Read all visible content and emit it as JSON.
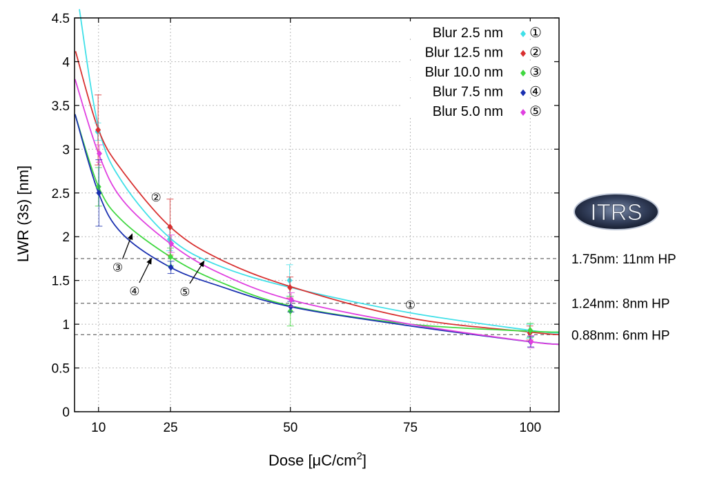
{
  "chart_data": {
    "type": "line",
    "xlabel": "Dose [μC/cm",
    "xlabel_sup": "2",
    "xlabel_end": "]",
    "ylabel": "LWR (3s)  [nm]",
    "xlim": [
      5,
      106
    ],
    "ylim": [
      0,
      4.5
    ],
    "x_ticks": [
      10,
      25,
      50,
      75,
      100
    ],
    "y_ticks": [
      0,
      0.5,
      1,
      1.5,
      2,
      2.5,
      3,
      3.5,
      4,
      4.5
    ],
    "y_tick_labels": [
      "0",
      "0.5",
      "1",
      "1.5",
      "2",
      "2.5",
      "3",
      "3.5",
      "4",
      "4.5"
    ],
    "grid": true,
    "legend_position": "top-right",
    "series": [
      {
        "name": "Blur  2.5 nm",
        "marker": "①",
        "color": "#40e0e8",
        "points": [
          [
            10,
            3.2
          ],
          [
            25,
            1.97
          ],
          [
            50,
            1.5
          ],
          [
            100,
            0.92
          ]
        ],
        "errors": [
          0.1,
          0.13,
          0.18,
          0.08
        ],
        "curve": [
          [
            6,
            4.6
          ],
          [
            10,
            3.25
          ],
          [
            15,
            2.62
          ],
          [
            25,
            1.98
          ],
          [
            35,
            1.67
          ],
          [
            50,
            1.42
          ],
          [
            75,
            1.13
          ],
          [
            100,
            0.93
          ],
          [
            106,
            0.9
          ]
        ]
      },
      {
        "name": "Blur 12.5 nm",
        "marker": "②",
        "color": "#d83030",
        "points": [
          [
            10,
            3.22
          ],
          [
            25,
            2.11
          ],
          [
            50,
            1.42
          ],
          [
            100,
            0.9
          ]
        ],
        "errors": [
          0.4,
          0.32,
          0.12,
          0.08
        ],
        "curve": [
          [
            5.2,
            4.12
          ],
          [
            10,
            3.22
          ],
          [
            15,
            2.75
          ],
          [
            25,
            2.11
          ],
          [
            35,
            1.75
          ],
          [
            50,
            1.43
          ],
          [
            75,
            1.07
          ],
          [
            100,
            0.91
          ],
          [
            106,
            0.88
          ]
        ]
      },
      {
        "name": "Blur 10.0 nm",
        "marker": "③",
        "color": "#40d840",
        "points": [
          [
            10,
            2.57
          ],
          [
            25,
            1.77
          ],
          [
            50,
            1.15
          ],
          [
            100,
            0.93
          ]
        ],
        "errors": [
          0.22,
          0.1,
          0.17,
          0.08
        ],
        "curve": [
          [
            5.1,
            3.4
          ],
          [
            10,
            2.57
          ],
          [
            15,
            2.18
          ],
          [
            25,
            1.77
          ],
          [
            35,
            1.49
          ],
          [
            50,
            1.21
          ],
          [
            75,
            1.0
          ],
          [
            100,
            0.92
          ],
          [
            106,
            0.91
          ]
        ]
      },
      {
        "name": "Blur  7.5 nm",
        "marker": "④",
        "color": "#1a30b0",
        "points": [
          [
            10,
            2.5
          ],
          [
            25,
            1.65
          ],
          [
            50,
            1.2
          ],
          [
            100,
            0.8
          ]
        ],
        "errors": [
          0.38,
          0.07,
          0.06,
          0.06
        ],
        "curve": [
          [
            5.1,
            3.4
          ],
          [
            10,
            2.5
          ],
          [
            15,
            2.03
          ],
          [
            25,
            1.65
          ],
          [
            35,
            1.44
          ],
          [
            50,
            1.2
          ],
          [
            75,
            0.98
          ],
          [
            100,
            0.8
          ],
          [
            106,
            0.77
          ]
        ]
      },
      {
        "name": "Blur  5.0 nm",
        "marker": "⑤",
        "color": "#e040e0",
        "points": [
          [
            10,
            2.95
          ],
          [
            25,
            1.92
          ],
          [
            50,
            1.28
          ],
          [
            100,
            0.8
          ]
        ],
        "errors": [
          0.1,
          0.1,
          0.08,
          0.07
        ],
        "curve": [
          [
            5.1,
            3.8
          ],
          [
            10,
            2.95
          ],
          [
            15,
            2.42
          ],
          [
            25,
            1.92
          ],
          [
            35,
            1.59
          ],
          [
            50,
            1.28
          ],
          [
            75,
            1.0
          ],
          [
            100,
            0.8
          ],
          [
            106,
            0.77
          ]
        ]
      }
    ],
    "reference_lines": [
      {
        "y": 1.75,
        "label": "1.75nm: 11nm HP"
      },
      {
        "y": 1.24,
        "label": "1.24nm: 8nm HP"
      },
      {
        "y": 0.88,
        "label": "0.88nm: 6nm HP"
      }
    ],
    "annotations": [
      {
        "text": "②",
        "x": 22,
        "y": 2.45
      },
      {
        "text": "①",
        "x": 75,
        "y": 1.22
      },
      {
        "text": "③",
        "x": 14,
        "y": 1.65,
        "arrow_to": [
          17,
          2.03
        ]
      },
      {
        "text": "④",
        "x": 17.5,
        "y": 1.38,
        "arrow_to": [
          21,
          1.75
        ]
      },
      {
        "text": "⑤",
        "x": 28,
        "y": 1.37,
        "arrow_to": [
          32,
          1.72
        ]
      }
    ],
    "logo_text": "ITRS"
  }
}
